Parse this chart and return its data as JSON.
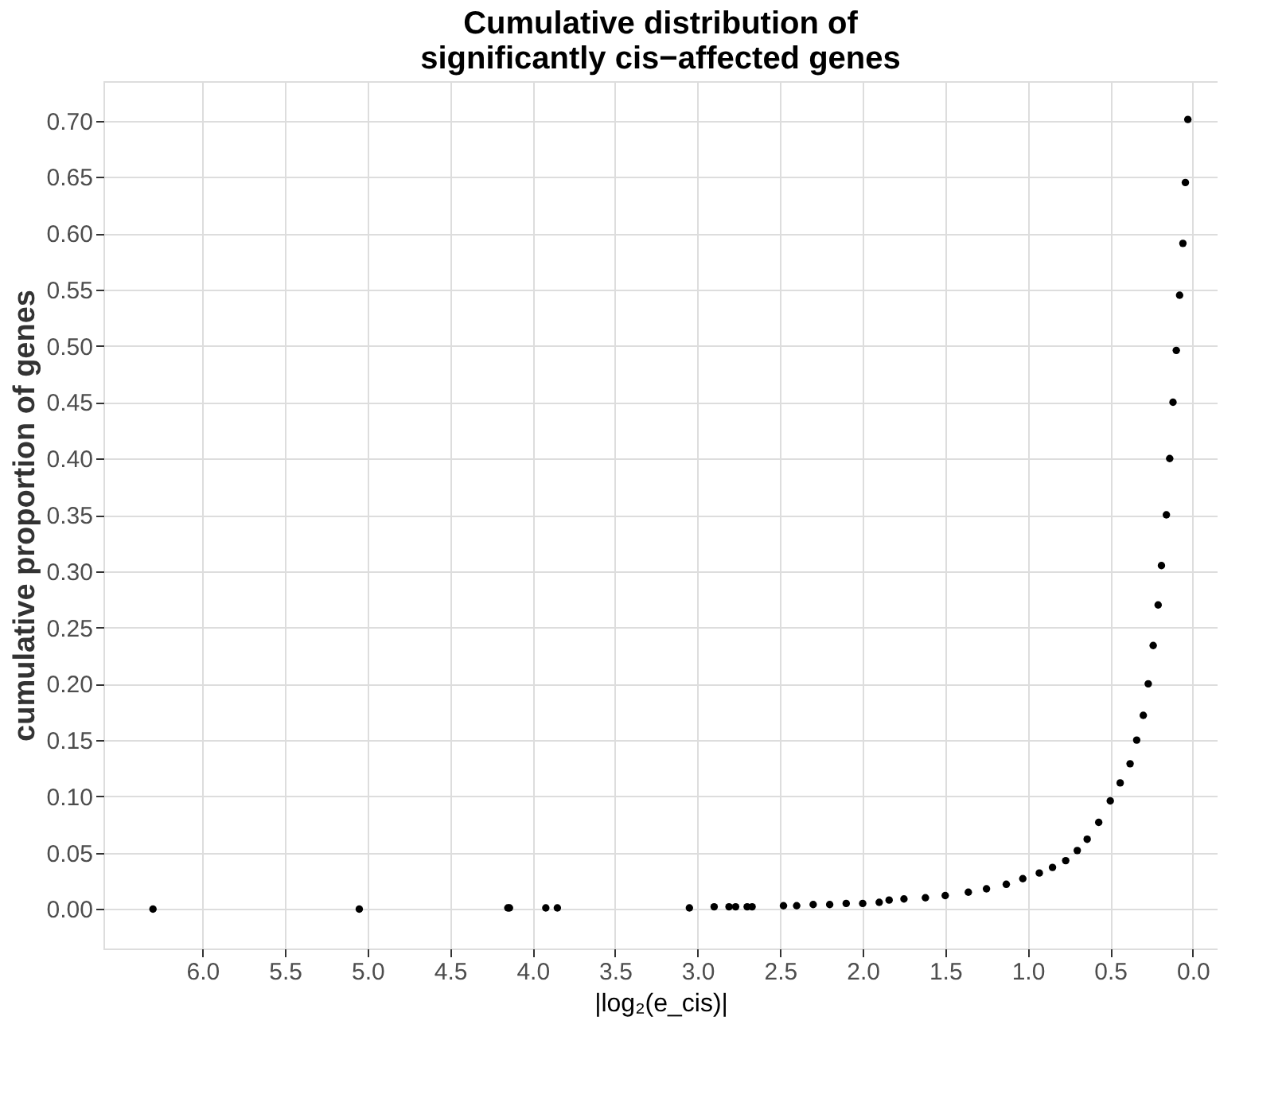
{
  "chart_data": {
    "type": "scatter",
    "title": "Cumulative distribution of\nsignificantly cis−affected genes",
    "xlabel": "|log₂(e_cis)|",
    "ylabel": "cumulative proportion of genes",
    "x": [
      6.3,
      5.05,
      4.15,
      4.14,
      3.92,
      3.85,
      3.05,
      2.9,
      2.81,
      2.77,
      2.7,
      2.67,
      2.48,
      2.4,
      2.3,
      2.2,
      2.1,
      2.0,
      1.9,
      1.84,
      1.75,
      1.62,
      1.5,
      1.36,
      1.25,
      1.13,
      1.03,
      0.93,
      0.85,
      0.77,
      0.7,
      0.64,
      0.57,
      0.5,
      0.44,
      0.38,
      0.34,
      0.3,
      0.27,
      0.24,
      0.21,
      0.19,
      0.16,
      0.14,
      0.12,
      0.1,
      0.08,
      0.06,
      0.045,
      0.03
    ],
    "series": [
      {
        "color": "#000000",
        "values": [
          0.0,
          0.0,
          0.001,
          0.001,
          0.001,
          0.001,
          0.001,
          0.002,
          0.002,
          0.002,
          0.002,
          0.002,
          0.003,
          0.003,
          0.004,
          0.004,
          0.005,
          0.005,
          0.006,
          0.008,
          0.009,
          0.01,
          0.012,
          0.015,
          0.018,
          0.022,
          0.027,
          0.032,
          0.037,
          0.043,
          0.052,
          0.062,
          0.077,
          0.096,
          0.112,
          0.129,
          0.15,
          0.172,
          0.2,
          0.234,
          0.27,
          0.305,
          0.35,
          0.4,
          0.45,
          0.496,
          0.545,
          0.591,
          0.645,
          0.701
        ]
      }
    ],
    "xlim": [
      6.6,
      -0.15
    ],
    "ylim": [
      -0.035,
      0.735
    ],
    "xticks": [
      {
        "value": 6,
        "label": "6.0"
      },
      5.5,
      {
        "value": 5,
        "label": "5.0"
      },
      4.5,
      {
        "value": 4,
        "label": "4.0"
      },
      3.5,
      {
        "value": 3,
        "label": "3.0"
      },
      2.5,
      {
        "value": 2,
        "label": "2.0"
      },
      1.5,
      {
        "value": 1,
        "label": "1.0"
      },
      0.5,
      {
        "value": 0,
        "label": "0.0"
      }
    ],
    "yticks": [
      {
        "value": 0,
        "label": "0.00"
      },
      0.05,
      {
        "value": 0.1,
        "label": "0.10"
      },
      0.15,
      {
        "value": 0.2,
        "label": "0.20"
      },
      0.25,
      {
        "value": 0.3,
        "label": "0.30"
      },
      0.35,
      {
        "value": 0.4,
        "label": "0.40"
      },
      0.45,
      {
        "value": 0.5,
        "label": "0.50"
      },
      0.55,
      {
        "value": 0.6,
        "label": "0.60"
      },
      0.65,
      {
        "value": 0.7,
        "label": "0.70"
      }
    ],
    "grid": true,
    "marker": "circle"
  }
}
